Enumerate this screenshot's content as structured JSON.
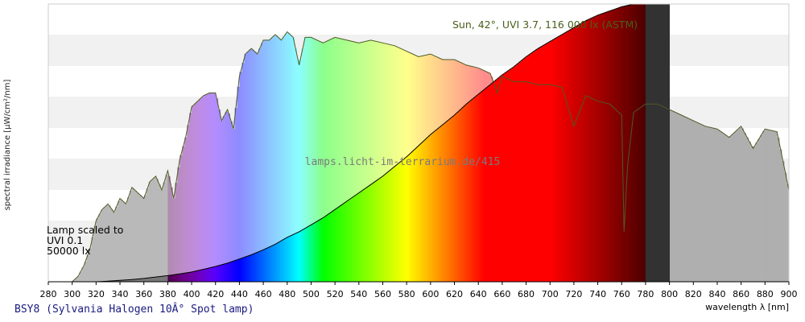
{
  "caption": "BSY8 (Sylvania Halogen 10Â° Spot lamp)",
  "chart_data": {
    "type": "area",
    "title": "",
    "xlabel": "wavelength λ [nm]",
    "ylabel": "spectral irradiance [µW/cm²/nm]",
    "xlim": [
      280,
      900
    ],
    "xticks": [
      280,
      300,
      320,
      340,
      360,
      380,
      400,
      420,
      440,
      460,
      480,
      500,
      520,
      540,
      560,
      580,
      600,
      620,
      640,
      660,
      680,
      700,
      720,
      740,
      760,
      780,
      800,
      820,
      840,
      860,
      880,
      900
    ],
    "ylim": [
      0,
      1
    ],
    "y_tick_labels_shown": false,
    "grid": "horizontal bands",
    "watermark": "lamps.licht-im-terrarium.de/415",
    "annotations": {
      "sun": "Sun, 42°, UVI 3.7, 116 000 lx (ASTM)",
      "lamp_line1": "Lamp scaled to",
      "lamp_line2": "UVI 0.1",
      "lamp_line3": "50000 lx"
    },
    "series": [
      {
        "name": "Sun, 42°, UVI 3.7, 116 000 lx (ASTM)",
        "x": [
          280,
          290,
          300,
          305,
          310,
          315,
          320,
          325,
          330,
          335,
          340,
          345,
          350,
          355,
          360,
          365,
          370,
          375,
          380,
          385,
          390,
          395,
          400,
          405,
          410,
          415,
          420,
          425,
          430,
          435,
          440,
          445,
          450,
          455,
          460,
          465,
          470,
          475,
          480,
          485,
          490,
          495,
          500,
          510,
          520,
          530,
          540,
          550,
          560,
          570,
          580,
          590,
          600,
          610,
          620,
          630,
          640,
          650,
          656,
          660,
          670,
          680,
          690,
          700,
          710,
          720,
          730,
          740,
          750,
          760,
          762,
          765,
          770,
          780,
          790,
          800,
          810,
          820,
          830,
          840,
          850,
          860,
          870,
          880,
          890,
          900
        ],
        "y": [
          0,
          0,
          0.0,
          0.02,
          0.06,
          0.12,
          0.22,
          0.26,
          0.28,
          0.25,
          0.3,
          0.28,
          0.34,
          0.32,
          0.3,
          0.36,
          0.38,
          0.33,
          0.4,
          0.3,
          0.44,
          0.52,
          0.63,
          0.65,
          0.67,
          0.68,
          0.68,
          0.58,
          0.62,
          0.55,
          0.74,
          0.82,
          0.84,
          0.82,
          0.87,
          0.87,
          0.89,
          0.87,
          0.9,
          0.88,
          0.78,
          0.88,
          0.88,
          0.86,
          0.88,
          0.87,
          0.86,
          0.87,
          0.86,
          0.85,
          0.83,
          0.81,
          0.82,
          0.8,
          0.8,
          0.78,
          0.77,
          0.75,
          0.68,
          0.74,
          0.72,
          0.72,
          0.71,
          0.71,
          0.7,
          0.56,
          0.67,
          0.65,
          0.64,
          0.6,
          0.18,
          0.42,
          0.61,
          0.64,
          0.64,
          0.62,
          0.6,
          0.58,
          0.56,
          0.55,
          0.52,
          0.56,
          0.48,
          0.55,
          0.54,
          0.33
        ]
      },
      {
        "name": "Lamp scaled to UVI 0.1 50000 lx",
        "x": [
          280,
          300,
          310,
          320,
          330,
          340,
          350,
          360,
          370,
          380,
          390,
          400,
          410,
          420,
          430,
          440,
          450,
          460,
          470,
          480,
          490,
          500,
          510,
          520,
          530,
          540,
          550,
          560,
          570,
          580,
          590,
          600,
          610,
          620,
          630,
          640,
          650,
          660,
          670,
          680,
          690,
          700,
          710,
          720,
          730,
          740,
          750,
          760,
          770,
          780,
          790,
          800
        ],
        "y": [
          0,
          0,
          0.0,
          0.0,
          0.002,
          0.005,
          0.008,
          0.012,
          0.017,
          0.022,
          0.028,
          0.035,
          0.045,
          0.055,
          0.067,
          0.082,
          0.097,
          0.115,
          0.135,
          0.16,
          0.18,
          0.205,
          0.23,
          0.26,
          0.29,
          0.32,
          0.35,
          0.38,
          0.415,
          0.45,
          0.49,
          0.53,
          0.565,
          0.6,
          0.64,
          0.675,
          0.71,
          0.745,
          0.775,
          0.81,
          0.84,
          0.865,
          0.89,
          0.915,
          0.94,
          0.96,
          0.975,
          0.99,
          1.0,
          1.01,
          1.02,
          1.03
        ]
      }
    ]
  }
}
